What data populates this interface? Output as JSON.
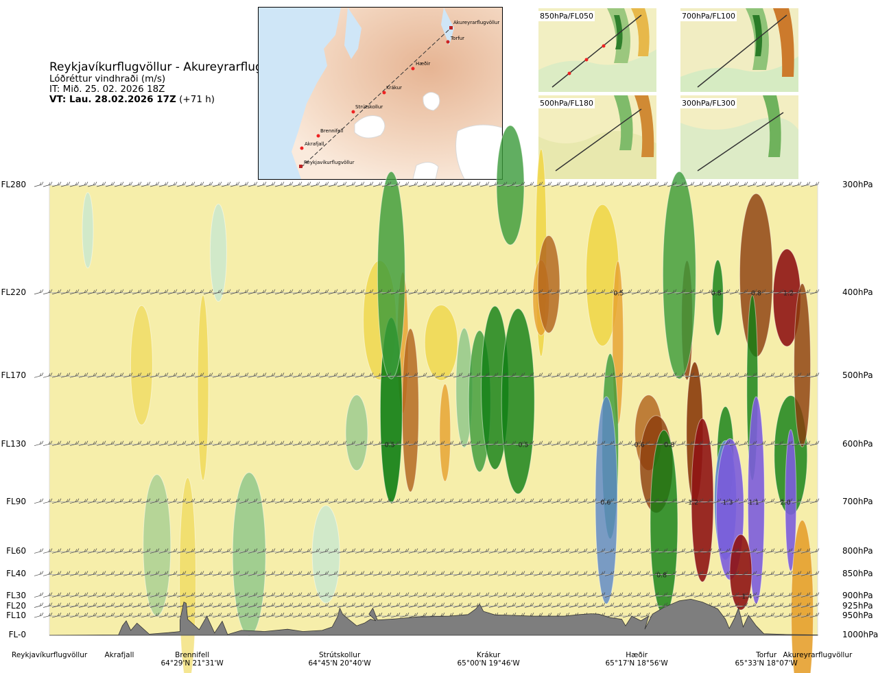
{
  "header": {
    "title": "Reykjavíkurflugvöllur - Akureyrarflugvöllur",
    "subtitle": "Lóðréttur vindhraði (m/s)",
    "it": "IT: Mið. 25. 02. 2026 18Z",
    "vt_bold": "VT: Lau. 28.02.2026 17Z",
    "vt_plain": " (+71 h)"
  },
  "map": {
    "stations": [
      "Akureyrarflugvöllur",
      "Torfur",
      "Hæðir",
      "Krákur",
      "Strútskollur",
      "Brennifell",
      "Akrafjall",
      "Reykjavíkurflugvöllur"
    ]
  },
  "insets": [
    "850hPa/FL050",
    "700hPa/FL100",
    "500hPa/FL180",
    "300hPa/FL300"
  ],
  "chart_data": {
    "type": "heatmap",
    "title": "Reykjavíkurflugvöllur - Akureyrarflugvöllur",
    "variable": "Lóðréttur vindhraði (m/s)",
    "flight_levels": [
      "FL280",
      "FL220",
      "FL170",
      "FL130",
      "FL90",
      "FL60",
      "FL40",
      "FL30",
      "FL20",
      "FL10",
      "FL-0"
    ],
    "pressure_levels": [
      "300hPa",
      "400hPa",
      "500hPa",
      "600hPa",
      "700hPa",
      "800hPa",
      "850hPa",
      "900hPa",
      "925hPa",
      "950hPa",
      "1000hPa"
    ],
    "pressure_values": [
      300,
      400,
      500,
      600,
      700,
      800,
      850,
      900,
      925,
      950,
      1000
    ],
    "locations": [
      {
        "name": "Reykjavíkurflugvöllur",
        "coord": ""
      },
      {
        "name": "Akrafjall",
        "coord": ""
      },
      {
        "name": "Brennifell",
        "coord": "64°29'N 21°31'W"
      },
      {
        "name": "Strútskollur",
        "coord": "64°45'N 20°40'W"
      },
      {
        "name": "Krákur",
        "coord": "65°00'N 19°46'W"
      },
      {
        "name": "Hæðir",
        "coord": "65°17'N 18°56'W"
      },
      {
        "name": "Torfur",
        "coord": "65°33'N 18°07'W"
      },
      {
        "name": "Akureyrarflugvöllur",
        "coord": ""
      }
    ],
    "value_labels": [
      {
        "text": "0.5",
        "dist": 0.741,
        "p": 400
      },
      {
        "text": "0.8",
        "dist": 0.868,
        "p": 400
      },
      {
        "text": "0.8",
        "dist": 0.92,
        "p": 400
      },
      {
        "text": "1.2",
        "dist": 0.962,
        "p": 400
      },
      {
        "text": "0.5",
        "dist": 0.443,
        "p": 600
      },
      {
        "text": "0.5",
        "dist": 0.617,
        "p": 600
      },
      {
        "text": "0.6",
        "dist": 0.768,
        "p": 600
      },
      {
        "text": "0.8",
        "dist": 0.807,
        "p": 600
      },
      {
        "text": "0.6",
        "dist": 0.724,
        "p": 700
      },
      {
        "text": "1.2",
        "dist": 0.838,
        "p": 700
      },
      {
        "text": "1.3",
        "dist": 0.883,
        "p": 700
      },
      {
        "text": "1.1",
        "dist": 0.917,
        "p": 700
      },
      {
        "text": "2.0",
        "dist": 0.958,
        "p": 700
      },
      {
        "text": "0.8",
        "dist": 0.797,
        "p": 850
      },
      {
        "text": "1.4",
        "dist": 0.908,
        "p": 900
      }
    ]
  },
  "colors": {
    "up_strong": "#7c5cdc",
    "up_4": "#5a86c9",
    "up_3": "#0f7e14",
    "up_2": "#3a9a3a",
    "up_1": "#8cc58a",
    "up_0": "#cde8cc",
    "neutral": "#f4ffee",
    "down_0": "#f6eeaa",
    "down_1": "#efd64a",
    "down_2": "#e6a02e",
    "down_3": "#b0621c",
    "down_4": "#8b3b0b",
    "down_strong": "#8f1414",
    "terrain": "#7e7e7e"
  }
}
